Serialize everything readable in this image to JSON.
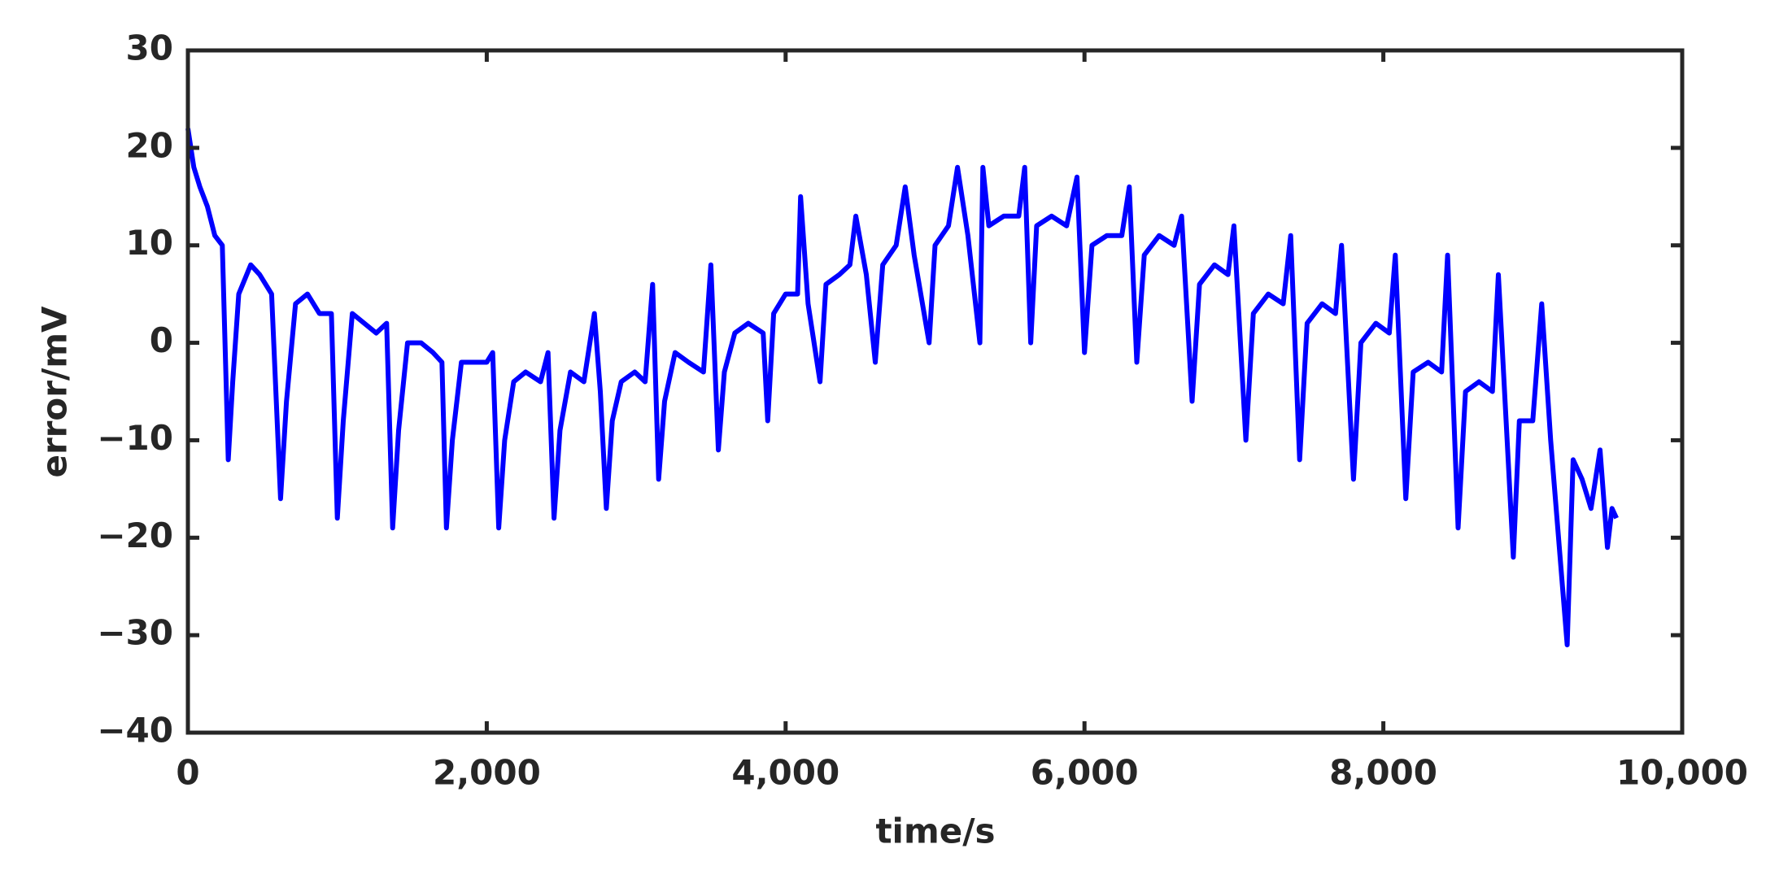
{
  "chart_data": {
    "type": "line",
    "xlabel": "time/s",
    "ylabel": "error/mV",
    "xlim": [
      0,
      10000
    ],
    "xticks": [
      0,
      {
        "value": 2000,
        "label": "2,000"
      },
      {
        "value": 4000,
        "label": "4,000"
      },
      {
        "value": 6000,
        "label": "6,000"
      },
      {
        "value": 8000,
        "label": "8,000"
      },
      {
        "value": 10000,
        "label": "10,000"
      }
    ],
    "ylim": [
      -40,
      30
    ],
    "yticks": [
      {
        "value": -40,
        "label": "−40"
      },
      {
        "value": -30,
        "label": "−30"
      },
      {
        "value": -20,
        "label": "−20"
      },
      {
        "value": -10,
        "label": "−10"
      },
      0,
      10,
      20,
      30
    ],
    "x": [
      0,
      40,
      80,
      130,
      180,
      230,
      270,
      300,
      340,
      420,
      480,
      560,
      620,
      660,
      720,
      800,
      880,
      960,
      1000,
      1040,
      1100,
      1180,
      1260,
      1330,
      1370,
      1410,
      1470,
      1560,
      1640,
      1700,
      1730,
      1770,
      1830,
      1920,
      2000,
      2040,
      2080,
      2120,
      2180,
      2260,
      2360,
      2410,
      2450,
      2490,
      2560,
      2650,
      2720,
      2760,
      2800,
      2840,
      2900,
      2990,
      3060,
      3110,
      3150,
      3190,
      3260,
      3350,
      3450,
      3500,
      3550,
      3590,
      3660,
      3750,
      3850,
      3880,
      3920,
      4000,
      4080,
      4100,
      4150,
      4230,
      4270,
      4360,
      4430,
      4470,
      4540,
      4600,
      4650,
      4740,
      4800,
      4860,
      4960,
      5000,
      5090,
      5150,
      5220,
      5300,
      5320,
      5360,
      5460,
      5560,
      5600,
      5640,
      5680,
      5780,
      5880,
      5950,
      6000,
      6050,
      6150,
      6250,
      6300,
      6350,
      6400,
      6500,
      6600,
      6650,
      6720,
      6770,
      6870,
      6960,
      7000,
      7080,
      7130,
      7230,
      7330,
      7380,
      7440,
      7490,
      7590,
      7680,
      7720,
      7800,
      7850,
      7950,
      8040,
      8080,
      8150,
      8200,
      8300,
      8390,
      8430,
      8500,
      8550,
      8640,
      8730,
      8770,
      8870,
      8910,
      9000,
      9060,
      9120,
      9230,
      9270,
      9330,
      9390,
      9450,
      9500,
      9530,
      9560
    ],
    "series": [
      {
        "color": "#0000ff",
        "values": [
          22,
          18,
          16,
          14,
          11,
          10,
          -12,
          -4,
          5,
          8,
          7,
          5,
          -16,
          -6,
          4,
          5,
          3,
          3,
          -18,
          -8,
          3,
          2,
          1,
          2,
          -19,
          -9,
          0,
          0,
          -1,
          -2,
          -19,
          -10,
          -2,
          -2,
          -2,
          -1,
          -19,
          -10,
          -4,
          -3,
          -4,
          -1,
          -18,
          -9,
          -3,
          -4,
          3,
          -5,
          -17,
          -8,
          -4,
          -3,
          -4,
          6,
          -14,
          -6,
          -1,
          -2,
          -3,
          8,
          -11,
          -3,
          1,
          2,
          1,
          -8,
          3,
          5,
          5,
          15,
          4,
          -4,
          6,
          7,
          8,
          13,
          7,
          -2,
          8,
          10,
          16,
          9,
          0,
          10,
          12,
          18,
          11,
          0,
          18,
          12,
          13,
          13,
          18,
          0,
          12,
          13,
          12,
          17,
          -1,
          10,
          11,
          11,
          16,
          -2,
          9,
          11,
          10,
          13,
          -6,
          6,
          8,
          7,
          12,
          -10,
          3,
          5,
          4,
          11,
          -12,
          2,
          4,
          3,
          10,
          -14,
          0,
          2,
          1,
          9,
          -16,
          -3,
          -2,
          -3,
          9,
          -19,
          -5,
          -4,
          -5,
          7,
          -22,
          -8,
          -8,
          4,
          -10,
          -31,
          -12,
          -14,
          -17,
          -11,
          -21,
          -17,
          -18
        ]
      }
    ]
  }
}
